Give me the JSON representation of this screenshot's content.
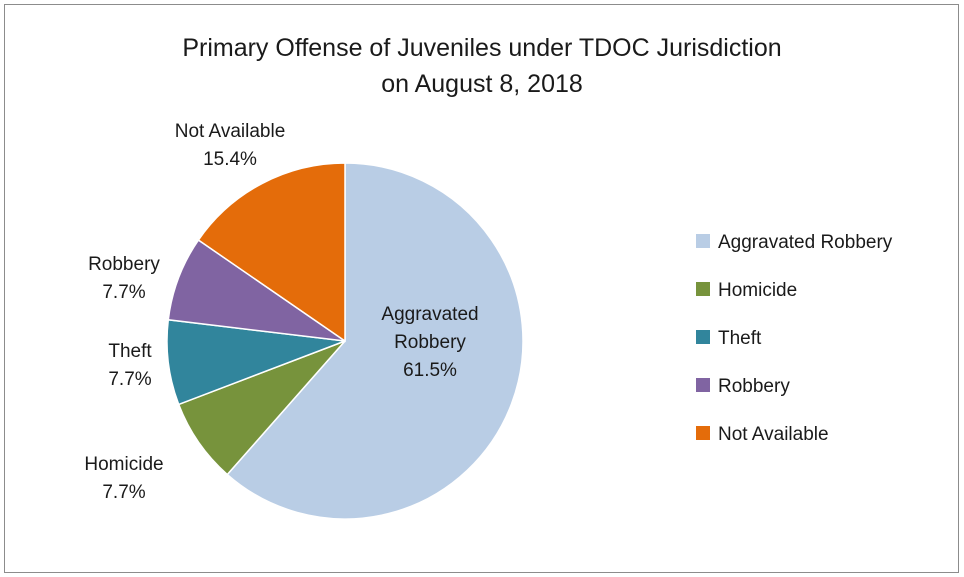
{
  "chart_data": {
    "type": "pie",
    "title_lines": [
      "Primary Offense of Juveniles under TDOC Jurisdiction",
      "on August 8, 2018"
    ],
    "categories": [
      "Aggravated Robbery",
      "Homicide",
      "Theft",
      "Robbery",
      "Not Available"
    ],
    "values": [
      61.5,
      7.7,
      7.7,
      7.7,
      15.4
    ],
    "value_labels": [
      "61.5%",
      "7.7%",
      "7.7%",
      "7.7%",
      "15.4%"
    ],
    "slice_labels": [
      [
        "Aggravated",
        "Robbery"
      ],
      [
        "Homicide"
      ],
      [
        "Theft"
      ],
      [
        "Robbery"
      ],
      [
        "Not Available"
      ]
    ],
    "colors": [
      "#b9cde5",
      "#77933c",
      "#31859c",
      "#8064a2",
      "#e46c0a"
    ],
    "legend_position": "right",
    "start_angle": "12 o'clock",
    "direction": "clockwise"
  }
}
